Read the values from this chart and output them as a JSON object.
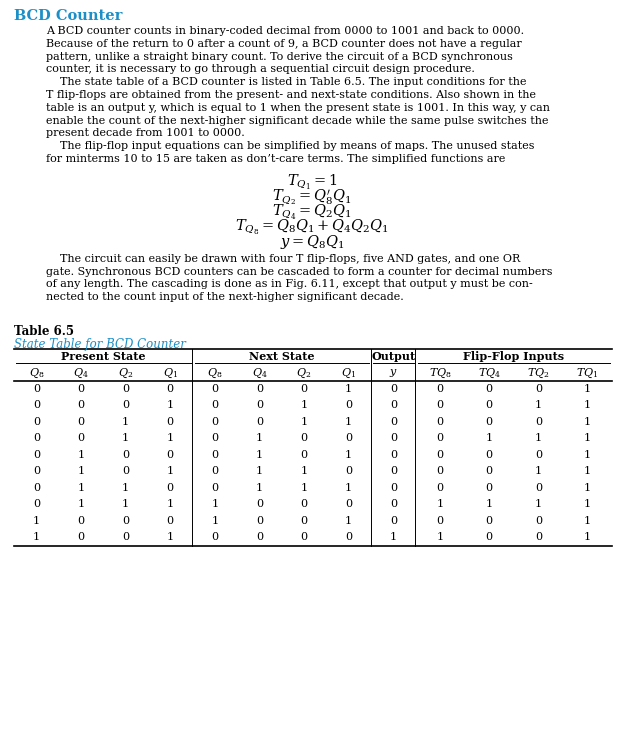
{
  "title": "BCD Counter",
  "title_color": "#1b8fc7",
  "body_text1": [
    "A BCD counter counts in binary-coded decimal from 0000 to 1001 and back to 0000.",
    "Because of the return to 0 after a count of 9, a BCD counter does not have a regular",
    "pattern, unlike a straight binary count. To derive the circuit of a BCD synchronous",
    "counter, it is necessary to go through a sequential circuit design procedure.",
    "    The state table of a BCD counter is listed in Table 6.5. The input conditions for the",
    "T flip-flops are obtained from the present- and next-state conditions. Also shown in the",
    "table is an output y, which is equal to 1 when the present state is 1001. In this way, y can",
    "enable the count of the next-higher significant decade while the same pulse switches the",
    "present decade from 1001 to 0000.",
    "    The flip-flop input equations can be simplified by means of maps. The unused states",
    "for minterms 10 to 15 are taken as don’t-care terms. The simplified functions are"
  ],
  "body_text2": [
    "    The circuit can easily be drawn with four T flip-flops, five AND gates, and one OR",
    "gate. Synchronous BCD counters can be cascaded to form a counter for decimal numbers",
    "of any length. The cascading is done as in Fig. 6.11, except that output y must be con-",
    "nected to the count input of the next-higher significant decade."
  ],
  "table_title": "Table 6.5",
  "table_subtitle": "State Table for BCD Counter",
  "table_subtitle_color": "#1b8fc7",
  "col_headers_ps": [
    "Q8",
    "Q4",
    "Q2",
    "Q1"
  ],
  "col_headers_ns": [
    "Q8",
    "Q4",
    "Q2",
    "Q1"
  ],
  "col_header_out": "y",
  "col_headers_ff": [
    "TQ8",
    "TQ4",
    "TQ2",
    "TQ1"
  ],
  "table_data": [
    [
      0,
      0,
      0,
      0,
      0,
      0,
      0,
      1,
      0,
      0,
      0,
      0,
      1
    ],
    [
      0,
      0,
      0,
      1,
      0,
      0,
      1,
      0,
      0,
      0,
      0,
      1,
      1
    ],
    [
      0,
      0,
      1,
      0,
      0,
      0,
      1,
      1,
      0,
      0,
      0,
      0,
      1
    ],
    [
      0,
      0,
      1,
      1,
      0,
      1,
      0,
      0,
      0,
      0,
      1,
      1,
      1
    ],
    [
      0,
      1,
      0,
      0,
      0,
      1,
      0,
      1,
      0,
      0,
      0,
      0,
      1
    ],
    [
      0,
      1,
      0,
      1,
      0,
      1,
      1,
      0,
      0,
      0,
      0,
      1,
      1
    ],
    [
      0,
      1,
      1,
      0,
      0,
      1,
      1,
      1,
      0,
      0,
      0,
      0,
      1
    ],
    [
      0,
      1,
      1,
      1,
      1,
      0,
      0,
      0,
      0,
      1,
      1,
      1,
      1
    ],
    [
      1,
      0,
      0,
      0,
      1,
      0,
      0,
      1,
      0,
      0,
      0,
      0,
      1
    ],
    [
      1,
      0,
      0,
      1,
      0,
      0,
      0,
      0,
      1,
      1,
      0,
      0,
      1
    ]
  ],
  "bg_color": "#ffffff",
  "text_color": "#000000",
  "font_size": 8.0,
  "table_font_size": 8.0,
  "line_color": "#000000"
}
